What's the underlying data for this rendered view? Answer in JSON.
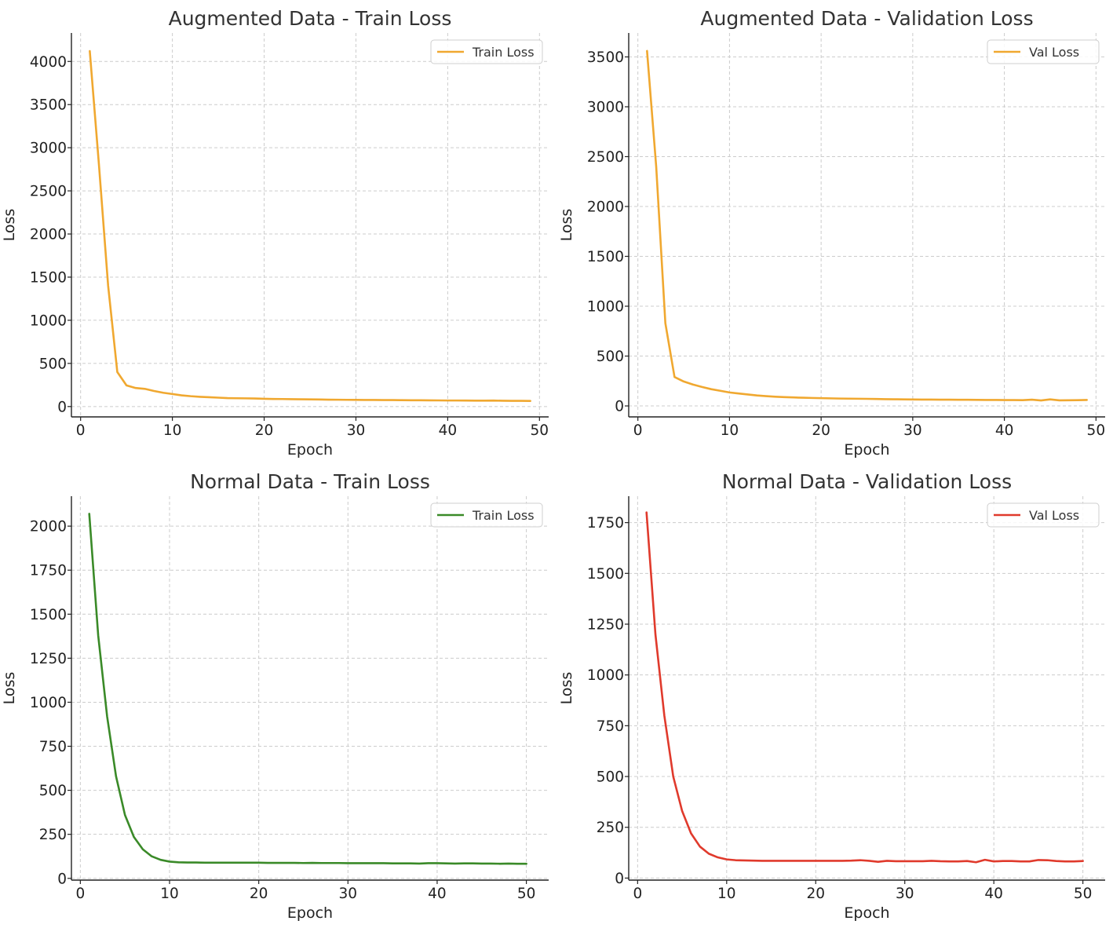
{
  "chart_data": [
    {
      "type": "line",
      "title": "Augmented Data - Train Loss",
      "xlabel": "Epoch",
      "ylabel": "Loss",
      "xlim": [
        -1,
        51
      ],
      "ylim": [
        -120,
        4330
      ],
      "xticks": [
        0,
        10,
        20,
        30,
        40,
        50
      ],
      "yticks": [
        0,
        500,
        1000,
        1500,
        2000,
        2500,
        3000,
        3500,
        4000
      ],
      "grid": true,
      "legend": "top-right",
      "series": [
        {
          "name": "Train Loss",
          "color": "#f0a830",
          "x": [
            1,
            2,
            3,
            4,
            5,
            6,
            7,
            8,
            9,
            10,
            11,
            12,
            13,
            14,
            15,
            16,
            17,
            18,
            19,
            20,
            21,
            22,
            23,
            24,
            25,
            26,
            27,
            28,
            29,
            30,
            31,
            32,
            33,
            34,
            35,
            36,
            37,
            38,
            39,
            40,
            41,
            42,
            43,
            44,
            45,
            46,
            47,
            48,
            49
          ],
          "values": [
            4120,
            2800,
            1400,
            400,
            245,
            215,
            205,
            180,
            160,
            145,
            130,
            120,
            113,
            108,
            103,
            98,
            96,
            95,
            93,
            90,
            88,
            87,
            85,
            84,
            83,
            82,
            80,
            79,
            78,
            77,
            76,
            76,
            75,
            75,
            74,
            73,
            73,
            72,
            71,
            70,
            70,
            69,
            68,
            68,
            69,
            67,
            66,
            66,
            65
          ]
        }
      ]
    },
    {
      "type": "line",
      "title": "Augmented Data - Validation Loss",
      "xlabel": "Epoch",
      "ylabel": "Loss",
      "xlim": [
        -1,
        51
      ],
      "ylim": [
        -110,
        3740
      ],
      "xticks": [
        0,
        10,
        20,
        30,
        40,
        50
      ],
      "yticks": [
        0,
        500,
        1000,
        1500,
        2000,
        2500,
        3000,
        3500
      ],
      "grid": true,
      "legend": "top-right",
      "series": [
        {
          "name": "Val Loss",
          "color": "#f0a830",
          "x": [
            1,
            2,
            3,
            4,
            5,
            6,
            7,
            8,
            9,
            10,
            11,
            12,
            13,
            14,
            15,
            16,
            17,
            18,
            19,
            20,
            21,
            22,
            23,
            24,
            25,
            26,
            27,
            28,
            29,
            30,
            31,
            32,
            33,
            34,
            35,
            36,
            37,
            38,
            39,
            40,
            41,
            42,
            43,
            44,
            45,
            46,
            47,
            48,
            49
          ],
          "values": [
            3560,
            2400,
            830,
            290,
            245,
            215,
            190,
            168,
            152,
            135,
            125,
            115,
            105,
            98,
            92,
            88,
            85,
            82,
            80,
            78,
            76,
            74,
            73,
            72,
            71,
            70,
            68,
            67,
            66,
            65,
            64,
            64,
            63,
            63,
            62,
            62,
            61,
            60,
            60,
            59,
            59,
            58,
            63,
            55,
            66,
            56,
            57,
            58,
            60
          ]
        }
      ]
    },
    {
      "type": "line",
      "title": "Normal Data - Train Loss",
      "xlabel": "Epoch",
      "ylabel": "Loss",
      "xlim": [
        -1,
        52.5
      ],
      "ylim": [
        -10,
        2170
      ],
      "xticks": [
        0,
        10,
        20,
        30,
        40,
        50
      ],
      "yticks": [
        0,
        250,
        500,
        750,
        1000,
        1250,
        1500,
        1750,
        2000
      ],
      "grid": true,
      "legend": "top-right",
      "series": [
        {
          "name": "Train Loss",
          "color": "#3a8a28",
          "x": [
            1,
            2,
            3,
            4,
            5,
            6,
            7,
            8,
            9,
            10,
            11,
            12,
            13,
            14,
            15,
            16,
            17,
            18,
            19,
            20,
            21,
            22,
            23,
            24,
            25,
            26,
            27,
            28,
            29,
            30,
            31,
            32,
            33,
            34,
            35,
            36,
            37,
            38,
            39,
            40,
            41,
            42,
            43,
            44,
            45,
            46,
            47,
            48,
            49,
            50
          ],
          "values": [
            2070,
            1380,
            920,
            580,
            360,
            235,
            165,
            125,
            105,
            95,
            91,
            90,
            90,
            89,
            89,
            89,
            89,
            89,
            89,
            89,
            88,
            88,
            88,
            88,
            87,
            88,
            87,
            87,
            87,
            86,
            86,
            86,
            86,
            86,
            85,
            85,
            85,
            84,
            86,
            86,
            85,
            84,
            85,
            85,
            84,
            84,
            83,
            84,
            83,
            83
          ]
        }
      ]
    },
    {
      "type": "line",
      "title": "Normal Data - Validation Loss",
      "xlabel": "Epoch",
      "ylabel": "Loss",
      "xlim": [
        -1,
        52.5
      ],
      "ylim": [
        -10,
        1880
      ],
      "xticks": [
        0,
        10,
        20,
        30,
        40,
        50
      ],
      "yticks": [
        0,
        250,
        500,
        750,
        1000,
        1250,
        1500,
        1750
      ],
      "grid": true,
      "legend": "top-right",
      "series": [
        {
          "name": "Val Loss",
          "color": "#e03a2c",
          "x": [
            1,
            2,
            3,
            4,
            5,
            6,
            7,
            8,
            9,
            10,
            11,
            12,
            13,
            14,
            15,
            16,
            17,
            18,
            19,
            20,
            21,
            22,
            23,
            24,
            25,
            26,
            27,
            28,
            29,
            30,
            31,
            32,
            33,
            34,
            35,
            36,
            37,
            38,
            39,
            40,
            41,
            42,
            43,
            44,
            45,
            46,
            47,
            48,
            49,
            50
          ],
          "values": [
            1800,
            1200,
            800,
            500,
            330,
            220,
            155,
            120,
            102,
            92,
            88,
            87,
            86,
            85,
            85,
            85,
            85,
            85,
            85,
            85,
            85,
            85,
            85,
            86,
            88,
            85,
            80,
            85,
            83,
            83,
            83,
            83,
            85,
            83,
            82,
            82,
            84,
            78,
            90,
            82,
            84,
            84,
            82,
            82,
            89,
            88,
            84,
            82,
            82,
            84
          ]
        }
      ]
    }
  ]
}
